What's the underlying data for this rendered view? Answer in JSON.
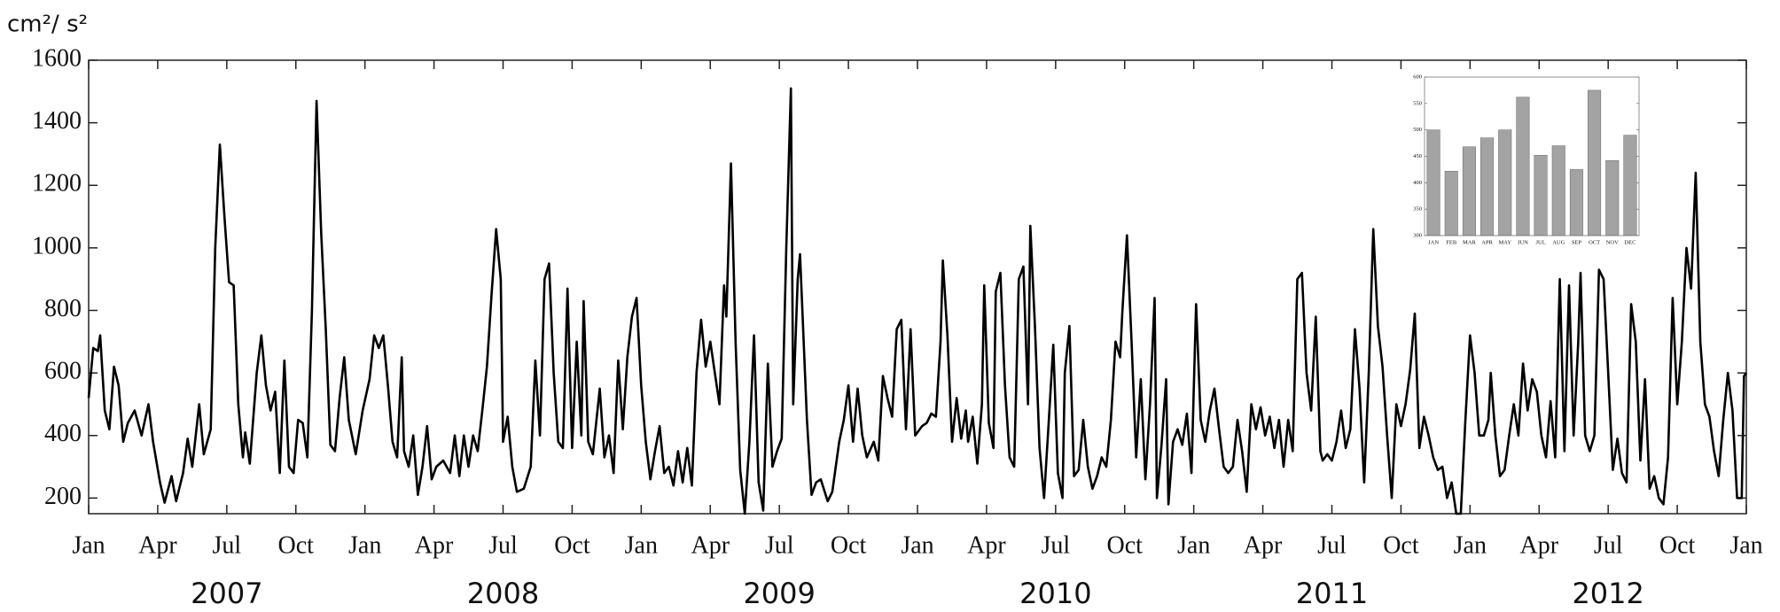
{
  "chart_data": [
    {
      "type": "line",
      "y_label": "cm²/ s²",
      "color": "#000000",
      "x": [
        0,
        0.2,
        0.4,
        0.5,
        0.7,
        0.9,
        1.1,
        1.3,
        1.5,
        1.7,
        2.0,
        2.3,
        2.6,
        2.8,
        3.1,
        3.3,
        3.6,
        3.8,
        4.1,
        4.3,
        4.5,
        4.8,
        5.0,
        5.3,
        5.5,
        5.7,
        5.9,
        6.1,
        6.3,
        6.5,
        6.7,
        6.8,
        7.0,
        7.3,
        7.5,
        7.7,
        7.9,
        8.1,
        8.3,
        8.5,
        8.7,
        8.9,
        9.1,
        9.3,
        9.5,
        9.7,
        9.9,
        10.1,
        10.3,
        10.5,
        10.7,
        10.9,
        11.1,
        11.3,
        11.6,
        11.9,
        12.2,
        12.4,
        12.6,
        12.8,
        13.0,
        13.2,
        13.4,
        13.6,
        13.7,
        13.9,
        14.1,
        14.3,
        14.5,
        14.7,
        14.9,
        15.1,
        15.4,
        15.7,
        15.9,
        16.1,
        16.3,
        16.5,
        16.7,
        16.9,
        17.1,
        17.3,
        17.5,
        17.7,
        17.9,
        18.0,
        18.2,
        18.4,
        18.6,
        18.9,
        19.2,
        19.4,
        19.6,
        19.8,
        20.0,
        20.2,
        20.4,
        20.6,
        20.8,
        21.0,
        21.2,
        21.4,
        21.5,
        21.7,
        21.9,
        22.2,
        22.4,
        22.6,
        22.8,
        23.0,
        23.2,
        23.4,
        23.6,
        23.8,
        24.0,
        24.2,
        24.4,
        24.6,
        24.8,
        25.0,
        25.2,
        25.4,
        25.6,
        25.8,
        26.0,
        26.2,
        26.4,
        26.6,
        26.8,
        27.0,
        27.2,
        27.4,
        27.6,
        27.7,
        27.9,
        28.1,
        28.3,
        28.5,
        28.7,
        28.9,
        29.1,
        29.3,
        29.5,
        29.7,
        29.9,
        30.1,
        30.3,
        30.5,
        30.6,
        30.8,
        30.9,
        31.2,
        31.4,
        31.6,
        31.8,
        32.1,
        32.3,
        32.6,
        32.8,
        33.0,
        33.2,
        33.4,
        33.6,
        33.8,
        34.1,
        34.3,
        34.5,
        34.7,
        34.9,
        35.1,
        35.3,
        35.5,
        35.7,
        35.9,
        36.2,
        36.4,
        36.6,
        36.8,
        37.0,
        37.1,
        37.3,
        37.5,
        37.7,
        37.9,
        38.1,
        38.2,
        38.4,
        38.6,
        38.8,
        38.9,
        39.1,
        39.3,
        39.4,
        39.6,
        39.8,
        40.0,
        40.2,
        40.4,
        40.6,
        40.8,
        40.9,
        41.1,
        41.3,
        41.5,
        41.7,
        41.9,
        42.1,
        42.3,
        42.4,
        42.6,
        42.8,
        43.0,
        43.2,
        43.4,
        43.6,
        43.8,
        44.0,
        44.2,
        44.4,
        44.6,
        44.8,
        44.9,
        45.1,
        45.3,
        45.5,
        45.7,
        45.9,
        46.1,
        46.3,
        46.4,
        46.6,
        46.8,
        46.9,
        47.1,
        47.3,
        47.5,
        47.7,
        47.9,
        48.1,
        48.3,
        48.5,
        48.7,
        48.9,
        49.1,
        49.3,
        49.5,
        49.7,
        49.9,
        50.1,
        50.3,
        50.5,
        50.7,
        50.9,
        51.1,
        51.3,
        51.5,
        51.7,
        51.9,
        52.1,
        52.3,
        52.5,
        52.7,
        52.9,
        53.1,
        53.3,
        53.5,
        53.6,
        53.8,
        54.0,
        54.2,
        54.4,
        54.6,
        54.8,
        55.0,
        55.2,
        55.4,
        55.6,
        55.8,
        56.0,
        56.2,
        56.4,
        56.6,
        56.8,
        57.0,
        57.2,
        57.4,
        57.6,
        57.8,
        58.0,
        58.2,
        58.4,
        58.6,
        58.8,
        59.0,
        59.2,
        59.4,
        59.6,
        59.8,
        60.0,
        60.2,
        60.4,
        60.6,
        60.8,
        60.9,
        61.1,
        61.3,
        61.5,
        61.7,
        61.9,
        62.1,
        62.3,
        62.5,
        62.7,
        62.9,
        63.1,
        63.3,
        63.5,
        63.7,
        63.9,
        64.1,
        64.3,
        64.5,
        64.7,
        64.8,
        65.0,
        65.2,
        65.4,
        65.6,
        65.8,
        66.0,
        66.2,
        66.4,
        66.6,
        66.8,
        67.0,
        67.2,
        67.4,
        67.6,
        67.8,
        68.0,
        68.2,
        68.4,
        68.6,
        68.8,
        69.0,
        69.2,
        69.4,
        69.6,
        69.8,
        70.0,
        70.2,
        70.4,
        70.6,
        70.8,
        71.0,
        71.2,
        71.4,
        71.6,
        71.8,
        71.9,
        72.0
      ],
      "values": [
        520,
        680,
        670,
        720,
        480,
        420,
        620,
        560,
        380,
        440,
        480,
        400,
        500,
        380,
        250,
        185,
        270,
        190,
        280,
        390,
        300,
        500,
        340,
        420,
        1000,
        1330,
        1100,
        890,
        880,
        500,
        330,
        410,
        310,
        600,
        720,
        560,
        480,
        540,
        280,
        640,
        300,
        280,
        450,
        440,
        330,
        800,
        1470,
        1050,
        740,
        370,
        350,
        520,
        650,
        450,
        340,
        480,
        580,
        720,
        680,
        720,
        560,
        380,
        330,
        650,
        350,
        300,
        400,
        210,
        300,
        430,
        260,
        300,
        320,
        280,
        400,
        270,
        400,
        300,
        400,
        350,
        480,
        620,
        850,
        1060,
        900,
        380,
        460,
        300,
        220,
        230,
        300,
        640,
        400,
        900,
        950,
        600,
        380,
        360,
        870,
        360,
        700,
        400,
        830,
        380,
        340,
        550,
        330,
        400,
        280,
        640,
        420,
        650,
        780,
        840,
        560,
        380,
        260,
        350,
        430,
        280,
        300,
        240,
        350,
        250,
        360,
        240,
        600,
        770,
        620,
        700,
        600,
        500,
        880,
        780,
        1270,
        700,
        290,
        150,
        380,
        720,
        250,
        160,
        630,
        300,
        350,
        390,
        1000,
        1510,
        500,
        900,
        980,
        450,
        210,
        250,
        260,
        190,
        220,
        380,
        450,
        560,
        380,
        550,
        400,
        330,
        380,
        320,
        590,
        520,
        460,
        740,
        770,
        420,
        740,
        400,
        430,
        440,
        470,
        460,
        700,
        960,
        720,
        380,
        520,
        390,
        480,
        380,
        460,
        310,
        500,
        880,
        440,
        360,
        860,
        920,
        560,
        330,
        300,
        900,
        940,
        500,
        1070,
        750,
        360,
        200,
        440,
        690,
        280,
        200,
        600,
        750,
        270,
        290,
        450,
        300,
        230,
        270,
        330,
        300,
        450,
        700,
        650,
        800,
        1040,
        700,
        330,
        580,
        260,
        500,
        840,
        200,
        370,
        580,
        180,
        380,
        420,
        370,
        470,
        280,
        820,
        450,
        380,
        480,
        550,
        420,
        300,
        280,
        300,
        450,
        350,
        220,
        500,
        420,
        490,
        400,
        460,
        360,
        450,
        300,
        450,
        350,
        900,
        920,
        600,
        480,
        780,
        350,
        320,
        340,
        320,
        380,
        480,
        360,
        420,
        740,
        550,
        250,
        600,
        1060,
        750,
        620,
        400,
        200,
        500,
        430,
        500,
        610,
        790,
        360,
        460,
        400,
        330,
        290,
        300,
        200,
        250,
        150,
        150,
        450,
        720,
        600,
        400,
        400,
        450,
        600,
        400,
        270,
        290,
        400,
        500,
        400,
        630,
        480,
        580,
        540,
        400,
        330,
        510,
        330,
        900,
        350,
        880,
        400,
        700,
        920,
        400,
        350,
        400,
        930,
        900,
        600,
        290,
        390,
        280,
        250,
        820,
        700,
        320,
        580,
        230,
        270,
        200,
        180,
        330,
        840,
        500,
        700,
        1000,
        870,
        1240,
        700,
        500,
        460,
        350,
        270,
        450,
        600,
        480,
        200,
        200,
        590,
        600
      ],
      "xlim": [
        0,
        72
      ],
      "xticks": [
        {
          "value": 0,
          "label": "Jan"
        },
        {
          "value": 3,
          "label": "Apr"
        },
        {
          "value": 6,
          "label": "Jul"
        },
        {
          "value": 9,
          "label": "Oct"
        },
        {
          "value": 12,
          "label": "Jan"
        },
        {
          "value": 15,
          "label": "Apr"
        },
        {
          "value": 18,
          "label": "Jul"
        },
        {
          "value": 21,
          "label": "Oct"
        },
        {
          "value": 24,
          "label": "Jan"
        },
        {
          "value": 27,
          "label": "Apr"
        },
        {
          "value": 30,
          "label": "Jul"
        },
        {
          "value": 33,
          "label": "Oct"
        },
        {
          "value": 36,
          "label": "Jan"
        },
        {
          "value": 39,
          "label": "Apr"
        },
        {
          "value": 42,
          "label": "Jul"
        },
        {
          "value": 45,
          "label": "Oct"
        },
        {
          "value": 48,
          "label": "Jan"
        },
        {
          "value": 51,
          "label": "Apr"
        },
        {
          "value": 54,
          "label": "Jul"
        },
        {
          "value": 57,
          "label": "Oct"
        },
        {
          "value": 60,
          "label": "Jan"
        },
        {
          "value": 63,
          "label": "Apr"
        },
        {
          "value": 66,
          "label": "Jul"
        },
        {
          "value": 69,
          "label": "Oct"
        },
        {
          "value": 72,
          "label": "Jan"
        }
      ],
      "year_ticks": [
        {
          "value": 6,
          "label": "2007"
        },
        {
          "value": 18,
          "label": "2008"
        },
        {
          "value": 30,
          "label": "2009"
        },
        {
          "value": 42,
          "label": "2010"
        },
        {
          "value": 54,
          "label": "2011"
        },
        {
          "value": 66,
          "label": "2012"
        }
      ],
      "ylim": [
        150,
        1600
      ],
      "yticks": [
        200,
        400,
        600,
        800,
        1000,
        1200,
        1400,
        1600
      ],
      "grid": false
    },
    {
      "type": "bar",
      "color": "#a3a3a3",
      "categories": [
        "JAN",
        "FEB",
        "MAR",
        "APR",
        "MAY",
        "JUN",
        "JUL",
        "AUG",
        "SEP",
        "OCT",
        "NOV",
        "DEC"
      ],
      "values": [
        500,
        422,
        468,
        485,
        500,
        562,
        452,
        470,
        425,
        575,
        442,
        490
      ],
      "ylim": [
        300,
        600
      ],
      "yticks": [
        300,
        350,
        400,
        450,
        500,
        550,
        600
      ],
      "grid": false
    }
  ]
}
